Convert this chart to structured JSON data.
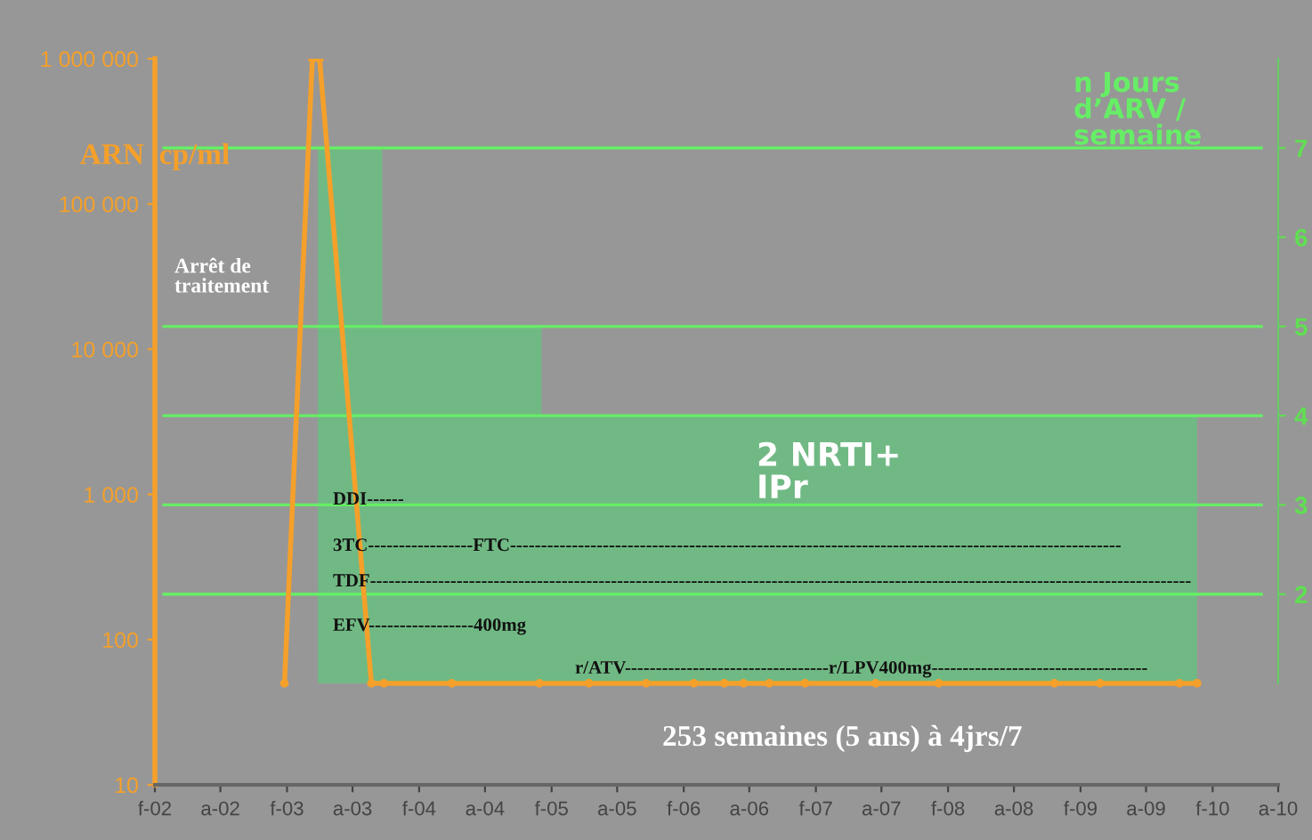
{
  "chart_data": {
    "type": "line",
    "ylabel": "ARN  cp/ml",
    "y2label": "n Jours\nd’ARV /\nsemaine",
    "log": "y",
    "grid": false,
    "xlim": [
      "2002-02",
      "2010-08"
    ],
    "xticks": [
      {
        "value": "2002-02",
        "label": "f-02"
      },
      {
        "value": "2002-08",
        "label": "a-02"
      },
      {
        "value": "2003-02",
        "label": "f-03"
      },
      {
        "value": "2003-08",
        "label": "a-03"
      },
      {
        "value": "2004-02",
        "label": "f-04"
      },
      {
        "value": "2004-08",
        "label": "a-04"
      },
      {
        "value": "2005-02",
        "label": "f-05"
      },
      {
        "value": "2005-08",
        "label": "a-05"
      },
      {
        "value": "2006-02",
        "label": "f-06"
      },
      {
        "value": "2006-08",
        "label": "a-06"
      },
      {
        "value": "2007-02",
        "label": "f-07"
      },
      {
        "value": "2007-08",
        "label": "a-07"
      },
      {
        "value": "2008-02",
        "label": "f-08"
      },
      {
        "value": "2008-08",
        "label": "a-08"
      },
      {
        "value": "2009-02",
        "label": "f-09"
      },
      {
        "value": "2009-08",
        "label": "a-09"
      },
      {
        "value": "2010-02",
        "label": "f-10"
      },
      {
        "value": "2010-08",
        "label": "a-10"
      }
    ],
    "ylim": [
      10,
      1000000
    ],
    "yticks": [
      10,
      100,
      {
        "value": 1000,
        "label": "1 000"
      },
      {
        "value": 10000,
        "label": "10 000"
      },
      {
        "value": 100000,
        "label": "100 000"
      },
      {
        "value": 1000000,
        "label": "1 000 000"
      }
    ],
    "y2lim": [
      1,
      8
    ],
    "y2ticks": [
      2,
      3,
      4,
      5,
      6,
      7
    ],
    "series": [
      {
        "type": "area",
        "axis": "y2",
        "color": "#6fba83",
        "x": [
          "2003-04-27",
          "2003-10-22",
          "2003-10-22",
          "2005-01-04",
          "2005-01-04",
          "2009-12-20"
        ],
        "values": [
          7,
          7,
          5,
          5,
          4,
          4
        ]
      },
      {
        "color": "#f5a02a",
        "marker": "circle",
        "x": [
          "2003-01-25",
          "2003-04-12",
          "2003-05-02",
          "2003-09-22",
          "2003-10-27",
          "2004-05-01",
          "2004-12-29",
          "2005-05-15",
          "2005-10-20",
          "2006-03-01",
          "2006-05-24",
          "2006-07-16",
          "2006-09-25",
          "2007-01-02",
          "2007-07-16",
          "2008-01-06",
          "2008-11-21",
          "2009-03-27",
          "2009-11-01",
          "2009-12-20"
        ],
        "values": [
          50,
          1000000,
          1000000,
          50,
          50,
          50,
          50,
          50,
          50,
          50,
          50,
          50,
          50,
          50,
          50,
          50,
          50,
          50,
          50,
          50
        ]
      }
    ],
    "ref_lines": [
      {
        "axis": "y2",
        "value": 7,
        "color": "#66ee66"
      },
      {
        "axis": "y2",
        "value": 5,
        "color": "#66ee66"
      },
      {
        "axis": "y2",
        "value": 4,
        "color": "#66ee66"
      },
      {
        "axis": "y2",
        "value": 3,
        "color": "#66ee66"
      },
      {
        "axis": "y2",
        "value": 2,
        "color": "#66ee66"
      }
    ],
    "annotations": [
      "Arrêt de\ntraitement",
      "2 NRTI+\nIPr",
      "DDI------",
      "3TC-----------------FTC---------------------------------------------------------------------------------------------------",
      "TDF-------------------------------------------------------------------------------------------------------------------------------------",
      "EFV-----------------400mg",
      "r/ATV---------------------------------r/LPV400mg-----------------------------------",
      "253 semaines (5 ans) à 4jrs/7"
    ]
  }
}
